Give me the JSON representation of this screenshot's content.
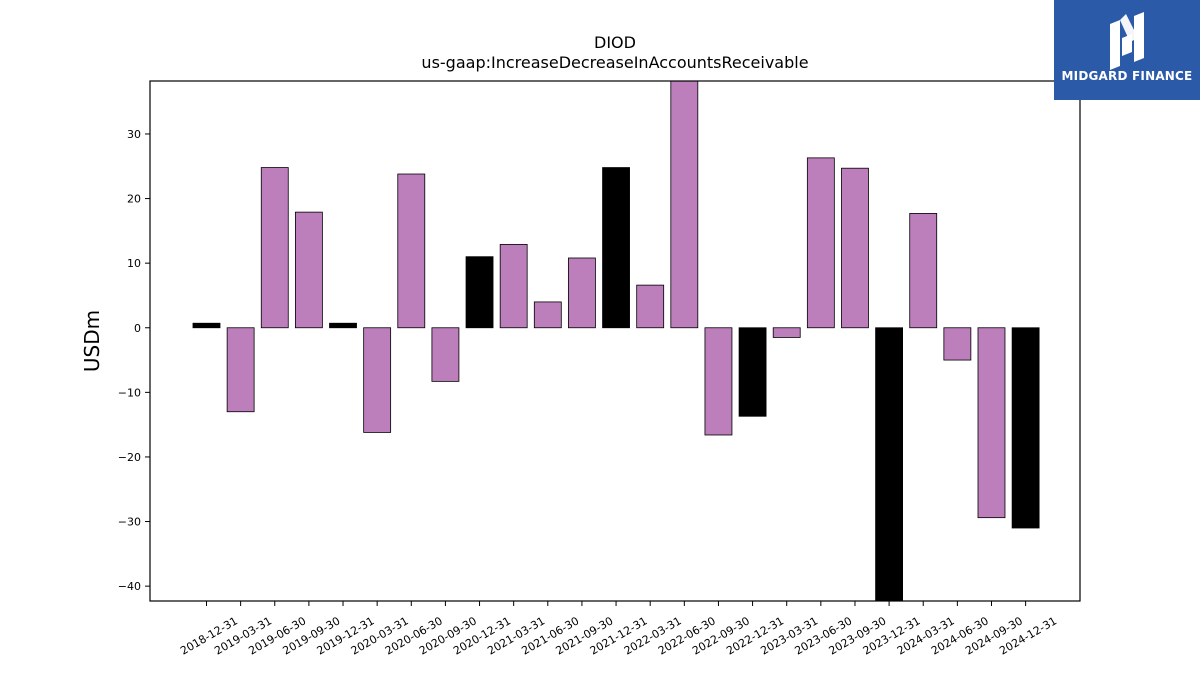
{
  "logo": {
    "text": "MIDGARD FINANCE",
    "background": "#2b5aa8"
  },
  "chart_data": {
    "type": "bar",
    "title": "DIOD",
    "subtitle": "us-gaap:IncreaseDecreaseInAccountsReceivable",
    "ylabel": "USDm",
    "xlabel": "",
    "ylim": [
      -42.3,
      38.2
    ],
    "yticks": [
      -40,
      -30,
      -20,
      -10,
      0,
      10,
      20,
      30
    ],
    "grid": false,
    "colors": {
      "quarter": "#bc7fbc",
      "annual": "#000000",
      "edge": "#000000"
    },
    "categories": [
      "2018-12-31",
      "2019-03-31",
      "2019-06-30",
      "2019-09-30",
      "2019-12-31",
      "2020-03-31",
      "2020-06-30",
      "2020-09-30",
      "2020-12-31",
      "2021-03-31",
      "2021-06-30",
      "2021-09-30",
      "2021-12-31",
      "2022-03-31",
      "2022-06-30",
      "2022-09-30",
      "2022-12-31",
      "2023-03-31",
      "2023-06-30",
      "2023-09-30",
      "2023-12-31",
      "2024-03-31",
      "2024-06-30",
      "2024-09-30",
      "2024-12-31"
    ],
    "values": [
      0.7,
      -13.0,
      24.8,
      17.9,
      0.7,
      -16.2,
      23.8,
      -8.3,
      11.0,
      12.9,
      4.0,
      10.8,
      24.8,
      6.6,
      38.2,
      -16.6,
      -13.7,
      -1.5,
      26.3,
      24.7,
      -42.3,
      17.7,
      -5.0,
      -29.4,
      -31.0
    ],
    "annual": [
      true,
      false,
      false,
      false,
      true,
      false,
      false,
      false,
      true,
      false,
      false,
      false,
      true,
      false,
      false,
      false,
      true,
      false,
      false,
      false,
      true,
      false,
      false,
      false,
      true
    ]
  }
}
